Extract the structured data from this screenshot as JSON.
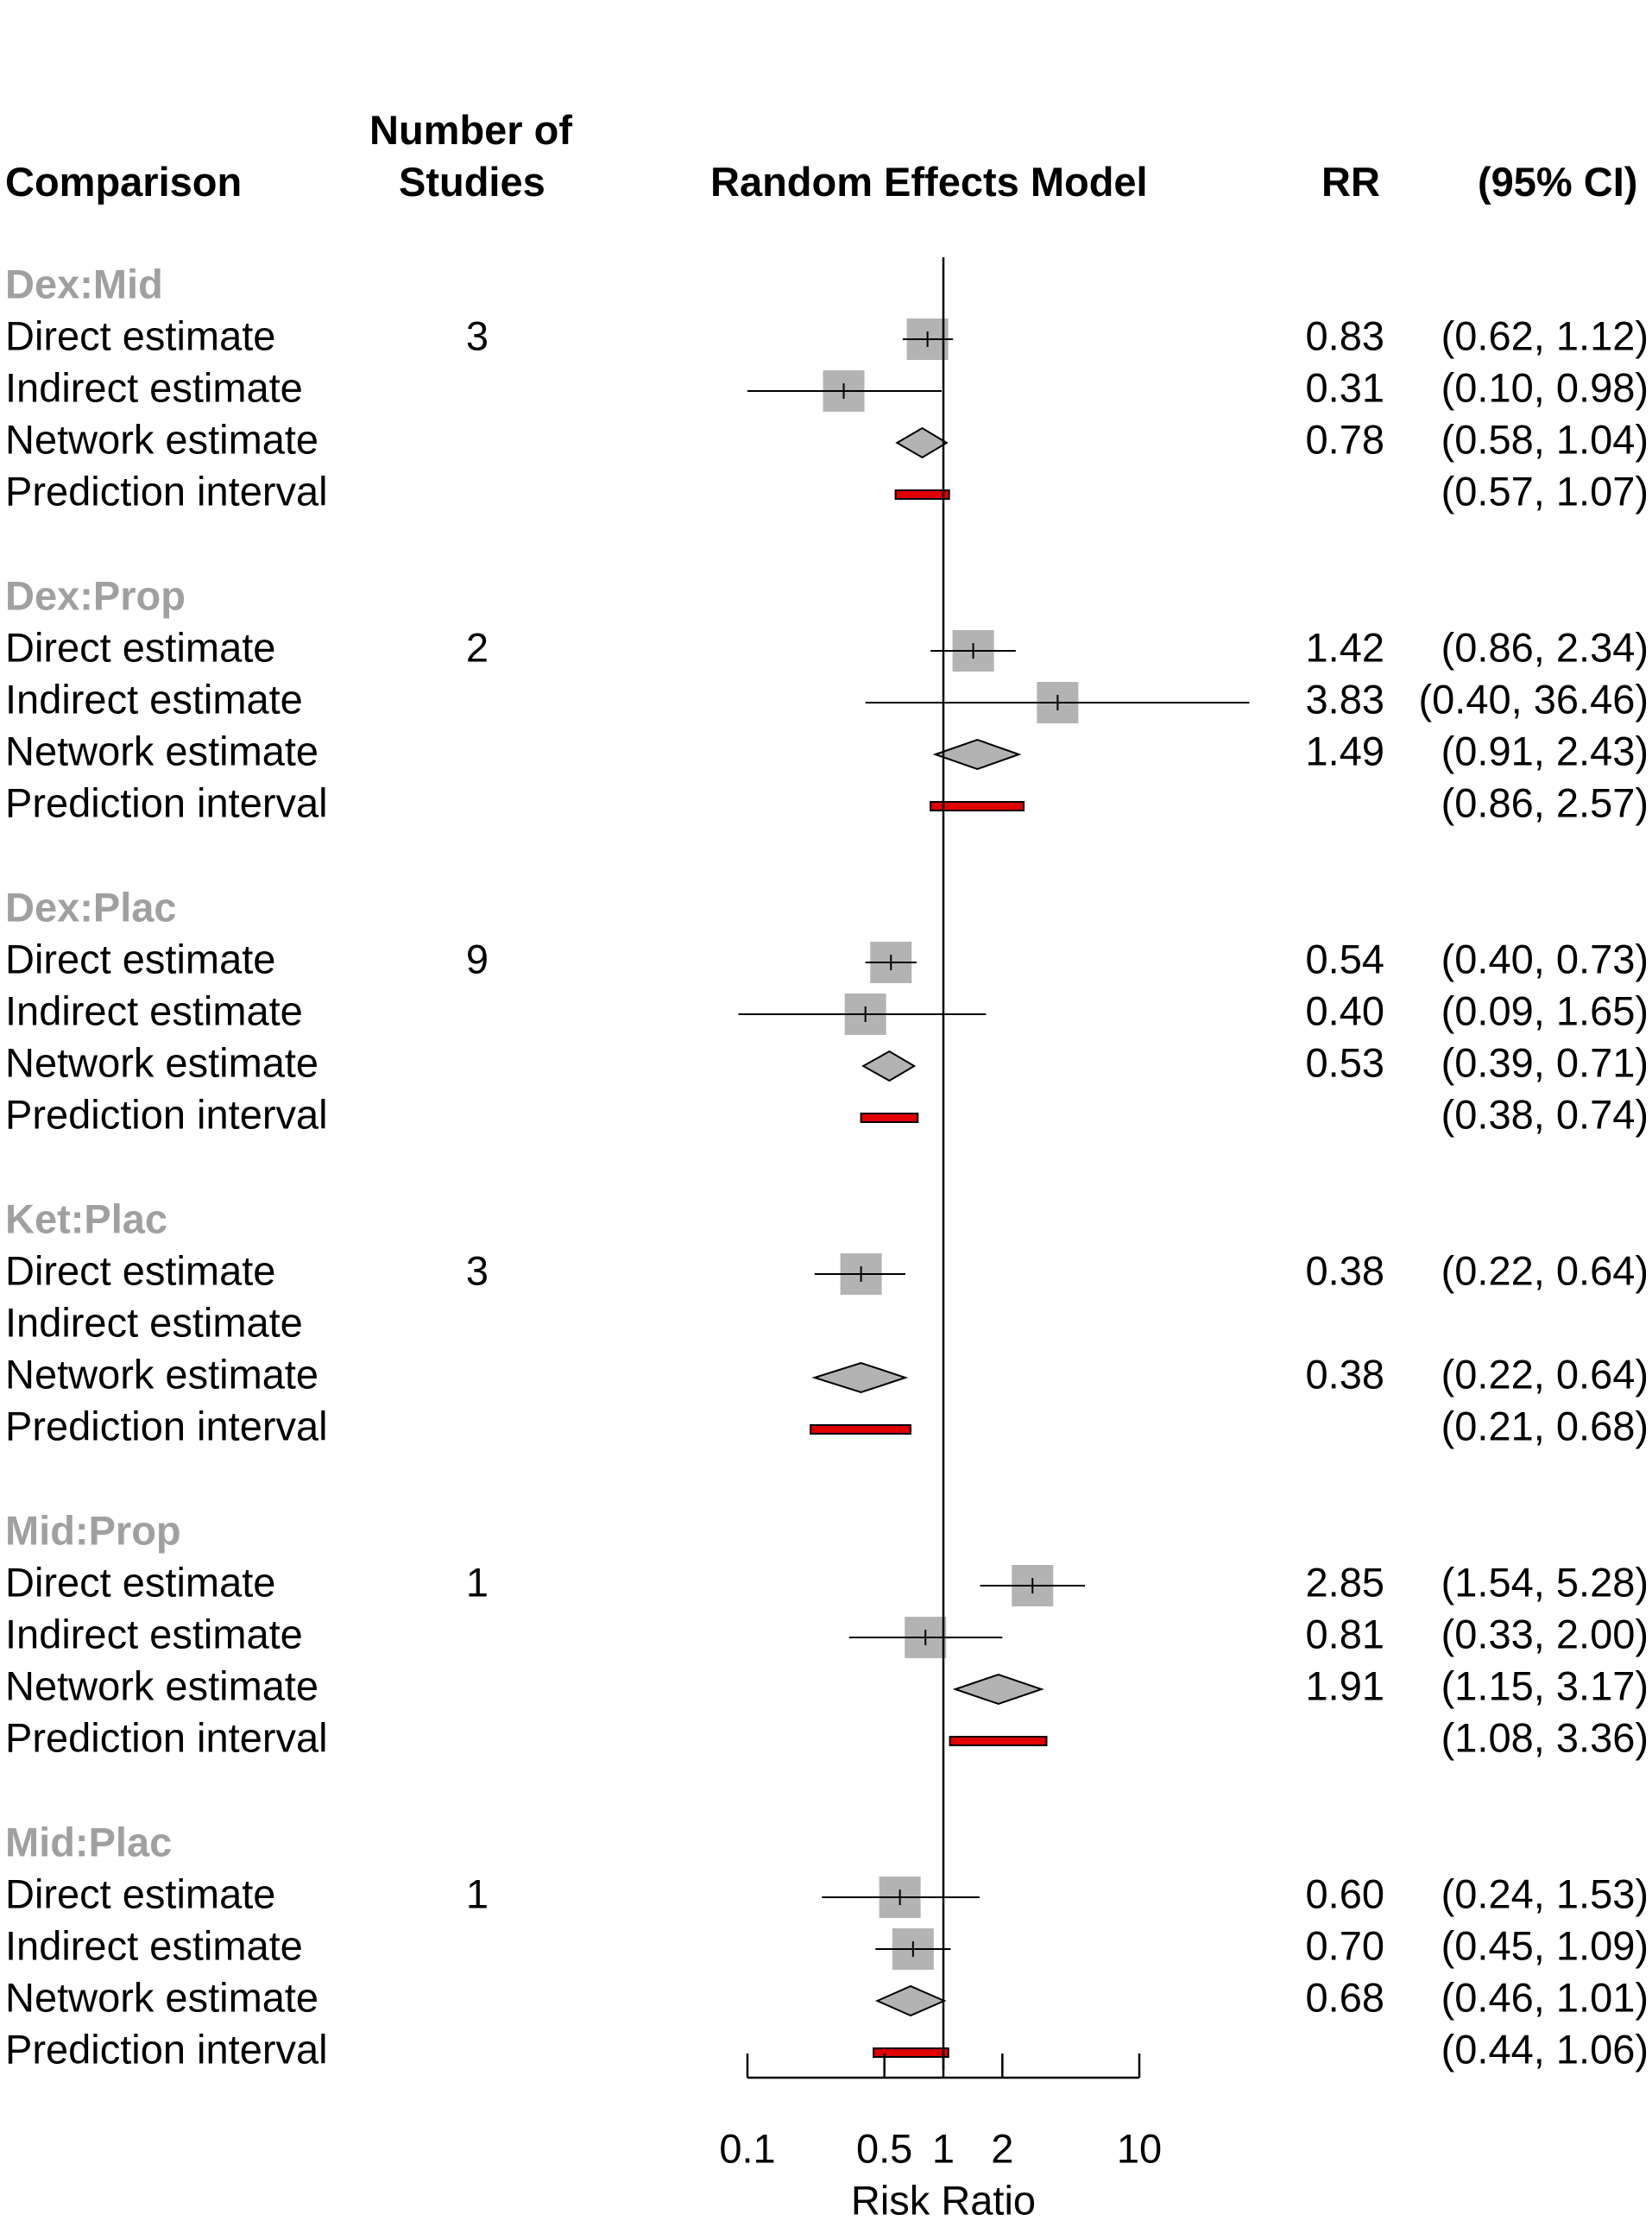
{
  "headers": {
    "comparison": "Comparison",
    "studies_line1": "Number of",
    "studies_line2": "Studies",
    "model": "Random Effects Model",
    "rr": "RR",
    "ci": "(95% CI)"
  },
  "colors": {
    "group_label": "#a0a0a0",
    "square": "#b3b3b3",
    "diamond": "#b3b3b3",
    "prediction": "#e00000",
    "line": "#000000"
  },
  "chart_data": {
    "type": "forest",
    "xlabel": "Risk Ratio",
    "x_scale": "log",
    "xlim": [
      0.1,
      10
    ],
    "x_ticks": [
      0.1,
      0.5,
      1,
      2,
      10
    ],
    "x_tick_labels": [
      "0.1",
      "0.5",
      "1",
      "2",
      "10"
    ],
    "reference_line": 1,
    "groups": [
      {
        "label": "Dex:Mid",
        "rows": [
          {
            "label": "Direct estimate",
            "n": "3",
            "kind": "square",
            "est": 0.83,
            "lo": 0.62,
            "hi": 1.12,
            "rr": "0.83",
            "ci": "(0.62,  1.12)"
          },
          {
            "label": "Indirect estimate",
            "n": "",
            "kind": "square",
            "est": 0.31,
            "lo": 0.1,
            "hi": 0.98,
            "rr": "0.31",
            "ci": "(0.10,  0.98)"
          },
          {
            "label": "Network estimate",
            "n": "",
            "kind": "diamond",
            "est": 0.78,
            "lo": 0.58,
            "hi": 1.04,
            "rr": "0.78",
            "ci": "(0.58,  1.04)"
          },
          {
            "label": "Prediction interval",
            "n": "",
            "kind": "interval",
            "lo": 0.57,
            "hi": 1.07,
            "rr": "",
            "ci": "(0.57,  1.07)"
          }
        ]
      },
      {
        "label": "Dex:Prop",
        "rows": [
          {
            "label": "Direct estimate",
            "n": "2",
            "kind": "square",
            "est": 1.42,
            "lo": 0.86,
            "hi": 2.34,
            "rr": "1.42",
            "ci": "(0.86,  2.34)"
          },
          {
            "label": "Indirect estimate",
            "n": "",
            "kind": "square",
            "est": 3.83,
            "lo": 0.4,
            "hi": 36.46,
            "rr": "3.83",
            "ci": "(0.40, 36.46)"
          },
          {
            "label": "Network estimate",
            "n": "",
            "kind": "diamond",
            "est": 1.49,
            "lo": 0.91,
            "hi": 2.43,
            "rr": "1.49",
            "ci": "(0.91,  2.43)"
          },
          {
            "label": "Prediction interval",
            "n": "",
            "kind": "interval",
            "lo": 0.86,
            "hi": 2.57,
            "rr": "",
            "ci": "(0.86,  2.57)"
          }
        ]
      },
      {
        "label": "Dex:Plac",
        "rows": [
          {
            "label": "Direct estimate",
            "n": "9",
            "kind": "square",
            "est": 0.54,
            "lo": 0.4,
            "hi": 0.73,
            "rr": "0.54",
            "ci": "(0.40,  0.73)"
          },
          {
            "label": "Indirect estimate",
            "n": "",
            "kind": "square",
            "est": 0.4,
            "lo": 0.09,
            "hi": 1.65,
            "rr": "0.40",
            "ci": "(0.09,  1.65)"
          },
          {
            "label": "Network estimate",
            "n": "",
            "kind": "diamond",
            "est": 0.53,
            "lo": 0.39,
            "hi": 0.71,
            "rr": "0.53",
            "ci": "(0.39,  0.71)"
          },
          {
            "label": "Prediction interval",
            "n": "",
            "kind": "interval",
            "lo": 0.38,
            "hi": 0.74,
            "rr": "",
            "ci": "(0.38,  0.74)"
          }
        ]
      },
      {
        "label": "Ket:Plac",
        "rows": [
          {
            "label": "Direct estimate",
            "n": "3",
            "kind": "square",
            "est": 0.38,
            "lo": 0.22,
            "hi": 0.64,
            "rr": "0.38",
            "ci": "(0.22,  0.64)"
          },
          {
            "label": "Indirect estimate",
            "n": "",
            "kind": "none",
            "rr": "",
            "ci": ""
          },
          {
            "label": "Network estimate",
            "n": "",
            "kind": "diamond",
            "est": 0.38,
            "lo": 0.22,
            "hi": 0.64,
            "rr": "0.38",
            "ci": "(0.22,  0.64)"
          },
          {
            "label": "Prediction interval",
            "n": "",
            "kind": "interval",
            "lo": 0.21,
            "hi": 0.68,
            "rr": "",
            "ci": "(0.21,  0.68)"
          }
        ]
      },
      {
        "label": "Mid:Prop",
        "rows": [
          {
            "label": "Direct estimate",
            "n": "1",
            "kind": "square",
            "est": 2.85,
            "lo": 1.54,
            "hi": 5.28,
            "rr": "2.85",
            "ci": "(1.54,  5.28)"
          },
          {
            "label": "Indirect estimate",
            "n": "",
            "kind": "square",
            "est": 0.81,
            "lo": 0.33,
            "hi": 2.0,
            "rr": "0.81",
            "ci": "(0.33,  2.00)"
          },
          {
            "label": "Network estimate",
            "n": "",
            "kind": "diamond",
            "est": 1.91,
            "lo": 1.15,
            "hi": 3.17,
            "rr": "1.91",
            "ci": "(1.15,  3.17)"
          },
          {
            "label": "Prediction interval",
            "n": "",
            "kind": "interval",
            "lo": 1.08,
            "hi": 3.36,
            "rr": "",
            "ci": "(1.08,  3.36)"
          }
        ]
      },
      {
        "label": "Mid:Plac",
        "rows": [
          {
            "label": "Direct estimate",
            "n": "1",
            "kind": "square",
            "est": 0.6,
            "lo": 0.24,
            "hi": 1.53,
            "rr": "0.60",
            "ci": "(0.24,  1.53)"
          },
          {
            "label": "Indirect estimate",
            "n": "",
            "kind": "square",
            "est": 0.7,
            "lo": 0.45,
            "hi": 1.09,
            "rr": "0.70",
            "ci": "(0.45,  1.09)"
          },
          {
            "label": "Network estimate",
            "n": "",
            "kind": "diamond",
            "est": 0.68,
            "lo": 0.46,
            "hi": 1.01,
            "rr": "0.68",
            "ci": "(0.46,  1.01)"
          },
          {
            "label": "Prediction interval",
            "n": "",
            "kind": "interval",
            "lo": 0.44,
            "hi": 1.06,
            "rr": "",
            "ci": "(0.44,  1.06)"
          }
        ]
      }
    ]
  }
}
